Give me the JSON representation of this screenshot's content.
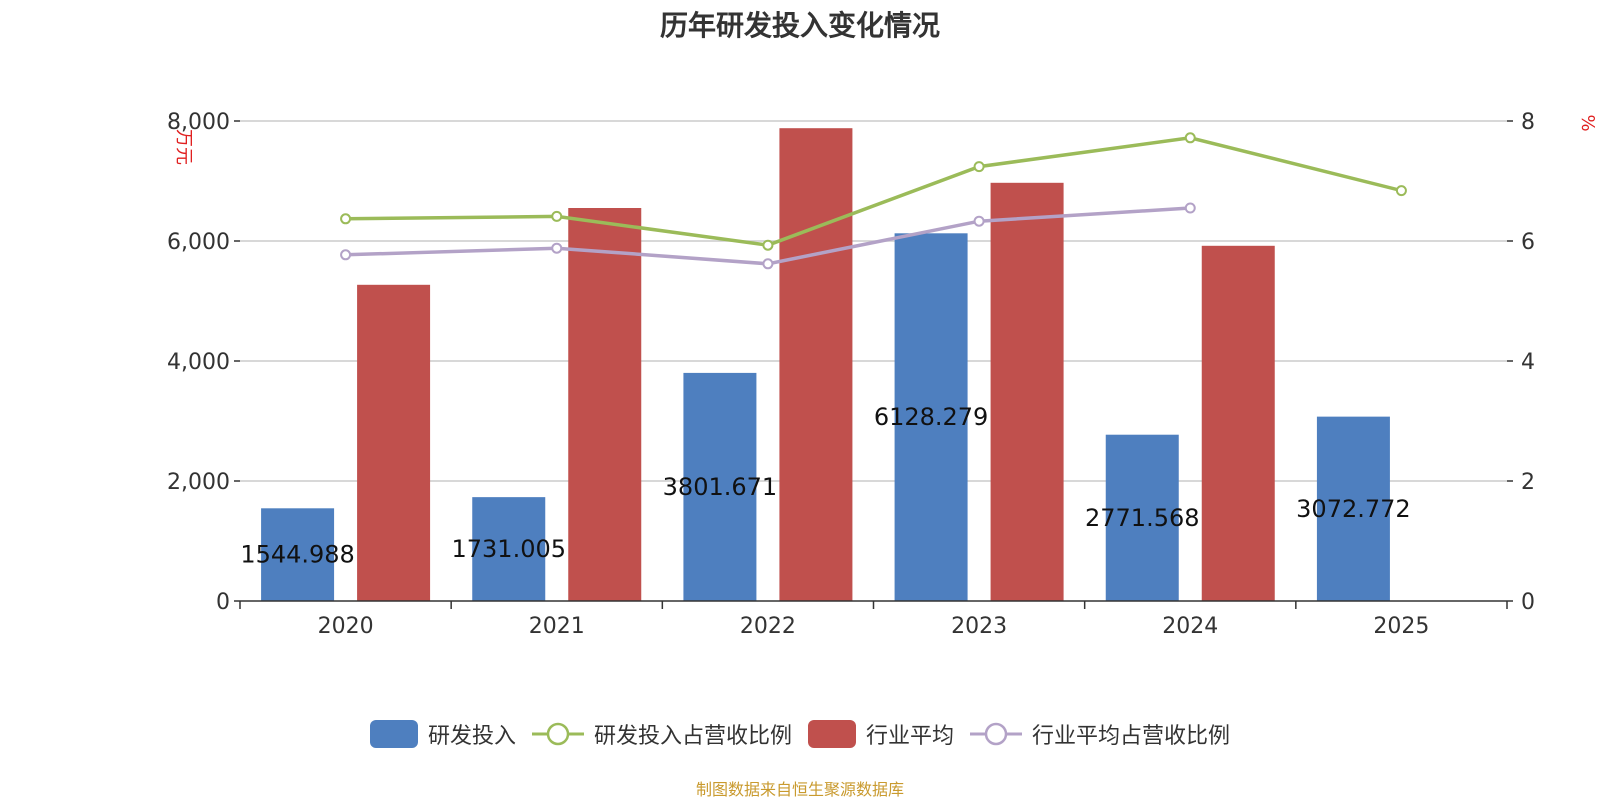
{
  "chart_data": {
    "type": "bar",
    "title": "历年研发投入变化情况",
    "left_axis_unit": "万元",
    "right_axis_unit": "%",
    "categories": [
      "2020",
      "2021",
      "2022",
      "2023",
      "2024",
      "2025"
    ],
    "left_ylim": [
      0,
      8000
    ],
    "right_ylim": [
      0,
      8
    ],
    "left_ticks": [
      "0",
      "2,000",
      "4,000",
      "6,000",
      "8,000"
    ],
    "right_ticks": [
      "0",
      "2",
      "4",
      "6",
      "8"
    ],
    "grid": true,
    "legend_position": "bottom",
    "bar_series": [
      {
        "name": "研发投入",
        "color": "#4e7fbf",
        "values": [
          1544.988,
          1731.005,
          3801.671,
          6128.279,
          2771.568,
          3072.772
        ],
        "labels": [
          "1544.988",
          "1731.005",
          "3801.671",
          "6128.279",
          "2771.568",
          "3072.772"
        ]
      },
      {
        "name": "行业平均",
        "color": "#c0504d",
        "values": [
          5270,
          6550,
          7880,
          6970,
          5920,
          null
        ]
      }
    ],
    "line_series": [
      {
        "name": "研发投入占营收比例",
        "color": "#9bbb59",
        "values": [
          6.37,
          6.41,
          5.93,
          7.24,
          7.72,
          6.84
        ]
      },
      {
        "name": "行业平均占营收比例",
        "color": "#b3a2c7",
        "values": [
          5.77,
          5.88,
          5.62,
          6.33,
          6.55,
          null
        ]
      }
    ]
  },
  "legend": {
    "items": [
      {
        "label": "研发投入",
        "kind": "bar",
        "color": "#4e7fbf"
      },
      {
        "label": "研发投入占营收比例",
        "kind": "line",
        "color": "#9bbb59"
      },
      {
        "label": "行业平均",
        "kind": "bar",
        "color": "#c0504d"
      },
      {
        "label": "行业平均占营收比例",
        "kind": "line",
        "color": "#b3a2c7"
      }
    ]
  },
  "source_note": "制图数据来自恒生聚源数据库"
}
